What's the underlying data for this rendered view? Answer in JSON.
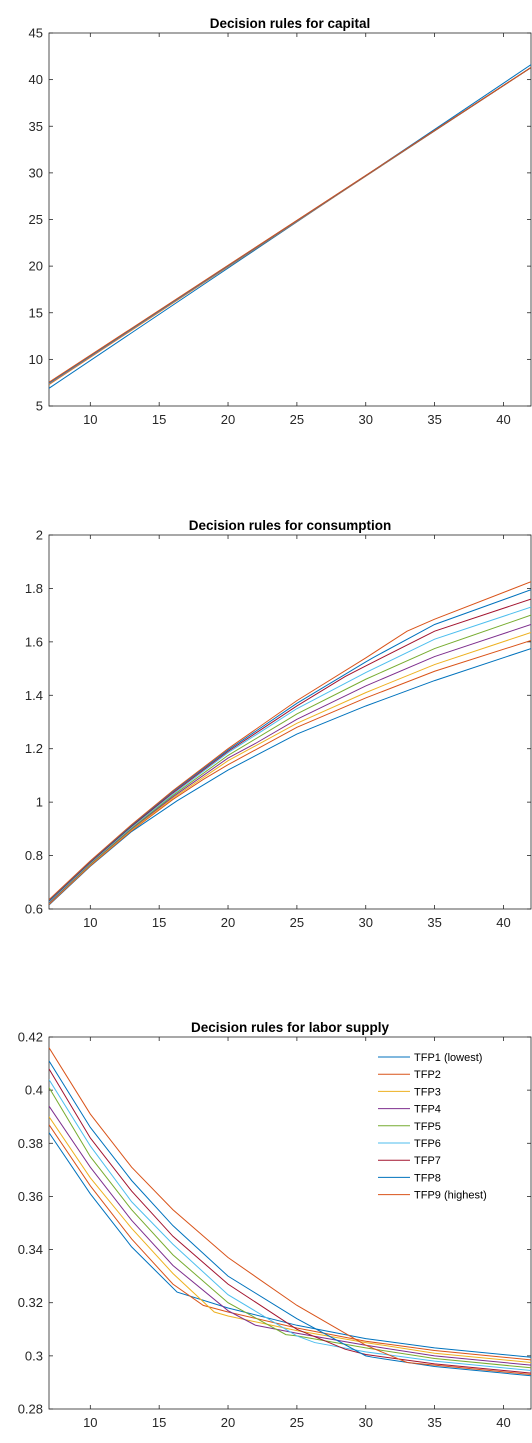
{
  "series_names": [
    "TFP1 (lowest)",
    "TFP2",
    "TFP3",
    "TFP4",
    "TFP5",
    "TFP6",
    "TFP7",
    "TFP8",
    "TFP9 (highest)"
  ],
  "series_colors": [
    "#0072bd",
    "#d95319",
    "#edb120",
    "#7e2f8e",
    "#77ac30",
    "#4dbeee",
    "#a2142f",
    "#0072bd",
    "#d95319"
  ],
  "chart_data": [
    {
      "type": "line",
      "title": "Decision rules for capital",
      "xlabel": "",
      "ylabel": "",
      "xlim": [
        7,
        42
      ],
      "ylim": [
        5,
        45
      ],
      "xticks": [
        10,
        15,
        20,
        25,
        30,
        35,
        40
      ],
      "yticks": [
        5,
        10,
        15,
        20,
        25,
        30,
        35,
        40,
        45
      ],
      "grid": false,
      "legend": "none",
      "series": [
        {
          "color": "#0072bd",
          "x": [
            7,
            42
          ],
          "y": [
            6.9,
            41.6
          ]
        },
        {
          "color": "#d95319",
          "x": [
            7,
            42
          ],
          "y": [
            7.3,
            41.3
          ]
        },
        {
          "color": "#edb120",
          "x": [
            7,
            42
          ],
          "y": [
            7.35,
            41.3
          ]
        },
        {
          "color": "#7e2f8e",
          "x": [
            7,
            42
          ],
          "y": [
            7.4,
            41.3
          ]
        },
        {
          "color": "#77ac30",
          "x": [
            7,
            42
          ],
          "y": [
            7.45,
            41.3
          ]
        },
        {
          "color": "#4dbeee",
          "x": [
            7,
            42
          ],
          "y": [
            7.45,
            41.3
          ]
        },
        {
          "color": "#a2142f",
          "x": [
            7,
            42
          ],
          "y": [
            7.5,
            41.3
          ]
        },
        {
          "color": "#0072bd",
          "x": [
            7,
            42
          ],
          "y": [
            7.5,
            41.3
          ]
        },
        {
          "color": "#d95319",
          "x": [
            7,
            42
          ],
          "y": [
            7.55,
            41.3
          ]
        }
      ]
    },
    {
      "type": "line",
      "title": "Decision rules for consumption",
      "xlabel": "",
      "ylabel": "",
      "xlim": [
        7,
        42
      ],
      "ylim": [
        0.6,
        2
      ],
      "xticks": [
        10,
        15,
        20,
        25,
        30,
        35,
        40
      ],
      "yticks": [
        0.6,
        0.8,
        1,
        1.2,
        1.4,
        1.6,
        1.8,
        2
      ],
      "grid": false,
      "legend": "none",
      "series": [
        {
          "color": "#0072bd",
          "x": [
            7,
            10,
            13,
            16.3,
            20,
            25,
            30,
            35,
            42
          ],
          "y": [
            0.615,
            0.76,
            0.89,
            1.005,
            1.12,
            1.255,
            1.36,
            1.455,
            1.575
          ]
        },
        {
          "color": "#d95319",
          "x": [
            7,
            10,
            13,
            16,
            18.2,
            20,
            25,
            30,
            35,
            42
          ],
          "y": [
            0.617,
            0.762,
            0.893,
            1.01,
            1.085,
            1.14,
            1.28,
            1.39,
            1.49,
            1.605
          ]
        },
        {
          "color": "#edb120",
          "x": [
            7,
            10,
            13,
            16,
            19,
            20,
            25,
            30,
            35,
            42
          ],
          "y": [
            0.62,
            0.765,
            0.896,
            1.015,
            1.12,
            1.155,
            1.295,
            1.41,
            1.515,
            1.635
          ]
        },
        {
          "color": "#7e2f8e",
          "x": [
            7,
            10,
            13,
            16,
            20,
            22,
            25,
            30,
            35,
            42
          ],
          "y": [
            0.622,
            0.768,
            0.9,
            1.02,
            1.165,
            1.22,
            1.31,
            1.435,
            1.545,
            1.665
          ]
        },
        {
          "color": "#77ac30",
          "x": [
            7,
            10,
            13,
            16,
            20,
            24.2,
            25,
            30,
            35,
            42
          ],
          "y": [
            0.625,
            0.77,
            0.903,
            1.025,
            1.175,
            1.305,
            1.33,
            1.46,
            1.575,
            1.7
          ]
        },
        {
          "color": "#4dbeee",
          "x": [
            7,
            10,
            13,
            16,
            20,
            25,
            26.3,
            30,
            35,
            42
          ],
          "y": [
            0.627,
            0.772,
            0.906,
            1.03,
            1.185,
            1.35,
            1.385,
            1.485,
            1.61,
            1.73
          ]
        },
        {
          "color": "#a2142f",
          "x": [
            7,
            10,
            13,
            16,
            20,
            25,
            28.5,
            30,
            35,
            42
          ],
          "y": [
            0.63,
            0.775,
            0.91,
            1.035,
            1.19,
            1.36,
            1.47,
            1.51,
            1.64,
            1.76
          ]
        },
        {
          "color": "#0072bd",
          "x": [
            7,
            10,
            13,
            16,
            20,
            25,
            30,
            30.5,
            35,
            42
          ],
          "y": [
            0.632,
            0.778,
            0.913,
            1.04,
            1.195,
            1.37,
            1.525,
            1.54,
            1.665,
            1.795
          ]
        },
        {
          "color": "#d95319",
          "x": [
            7,
            10,
            13,
            16,
            20,
            25,
            30,
            33,
            35,
            42
          ],
          "y": [
            0.635,
            0.78,
            0.916,
            1.043,
            1.2,
            1.38,
            1.54,
            1.64,
            1.685,
            1.825
          ]
        }
      ]
    },
    {
      "type": "line",
      "title": "Decision rules for labor supply",
      "xlabel": "",
      "ylabel": "",
      "xlim": [
        7,
        42
      ],
      "ylim": [
        0.28,
        0.42
      ],
      "xticks": [
        10,
        15,
        20,
        25,
        30,
        35,
        40
      ],
      "yticks": [
        0.28,
        0.3,
        0.32,
        0.34,
        0.36,
        0.38,
        0.4,
        0.42
      ],
      "grid": false,
      "legend": "top-right",
      "series": [
        {
          "color": "#0072bd",
          "x": [
            7,
            10,
            13,
            16.3,
            20,
            25,
            30,
            35,
            42
          ],
          "y": [
            0.384,
            0.361,
            0.341,
            0.324,
            0.318,
            0.3115,
            0.3065,
            0.303,
            0.2995
          ]
        },
        {
          "color": "#d95319",
          "x": [
            7,
            10,
            13,
            16,
            18.2,
            20,
            25,
            30,
            35,
            42
          ],
          "y": [
            0.387,
            0.364,
            0.344,
            0.327,
            0.319,
            0.3165,
            0.3105,
            0.3055,
            0.302,
            0.2985
          ]
        },
        {
          "color": "#edb120",
          "x": [
            7,
            10,
            13,
            16,
            19,
            20,
            25,
            30,
            35,
            42
          ],
          "y": [
            0.39,
            0.367,
            0.348,
            0.331,
            0.3165,
            0.315,
            0.3095,
            0.305,
            0.301,
            0.2975
          ]
        },
        {
          "color": "#7e2f8e",
          "x": [
            7,
            10,
            13,
            16,
            20,
            22,
            25,
            30,
            35,
            42
          ],
          "y": [
            0.394,
            0.371,
            0.351,
            0.334,
            0.317,
            0.3115,
            0.3085,
            0.304,
            0.3,
            0.2965
          ]
        },
        {
          "color": "#77ac30",
          "x": [
            7,
            10,
            13,
            16,
            20,
            24.2,
            25,
            30,
            35,
            42
          ],
          "y": [
            0.401,
            0.375,
            0.355,
            0.338,
            0.32,
            0.308,
            0.3075,
            0.303,
            0.299,
            0.2955
          ]
        },
        {
          "color": "#4dbeee",
          "x": [
            7,
            10,
            13,
            16,
            20,
            25,
            26.3,
            30,
            35,
            42
          ],
          "y": [
            0.404,
            0.379,
            0.358,
            0.342,
            0.323,
            0.3075,
            0.305,
            0.3015,
            0.298,
            0.2945
          ]
        },
        {
          "color": "#a2142f",
          "x": [
            7,
            10,
            13,
            16,
            20,
            25,
            28.5,
            30,
            35,
            42
          ],
          "y": [
            0.408,
            0.382,
            0.362,
            0.345,
            0.327,
            0.31,
            0.3025,
            0.3005,
            0.297,
            0.2935
          ]
        },
        {
          "color": "#0072bd",
          "x": [
            7,
            10,
            13,
            16,
            20,
            25,
            30,
            30.5,
            35,
            42
          ],
          "y": [
            0.411,
            0.386,
            0.366,
            0.349,
            0.33,
            0.314,
            0.3,
            0.2995,
            0.296,
            0.2925
          ]
        },
        {
          "color": "#d95319",
          "x": [
            7,
            10,
            13,
            16,
            20,
            25,
            30,
            33,
            35,
            42
          ],
          "y": [
            0.416,
            0.391,
            0.371,
            0.355,
            0.337,
            0.319,
            0.304,
            0.2975,
            0.2965,
            0.293
          ]
        }
      ]
    }
  ]
}
